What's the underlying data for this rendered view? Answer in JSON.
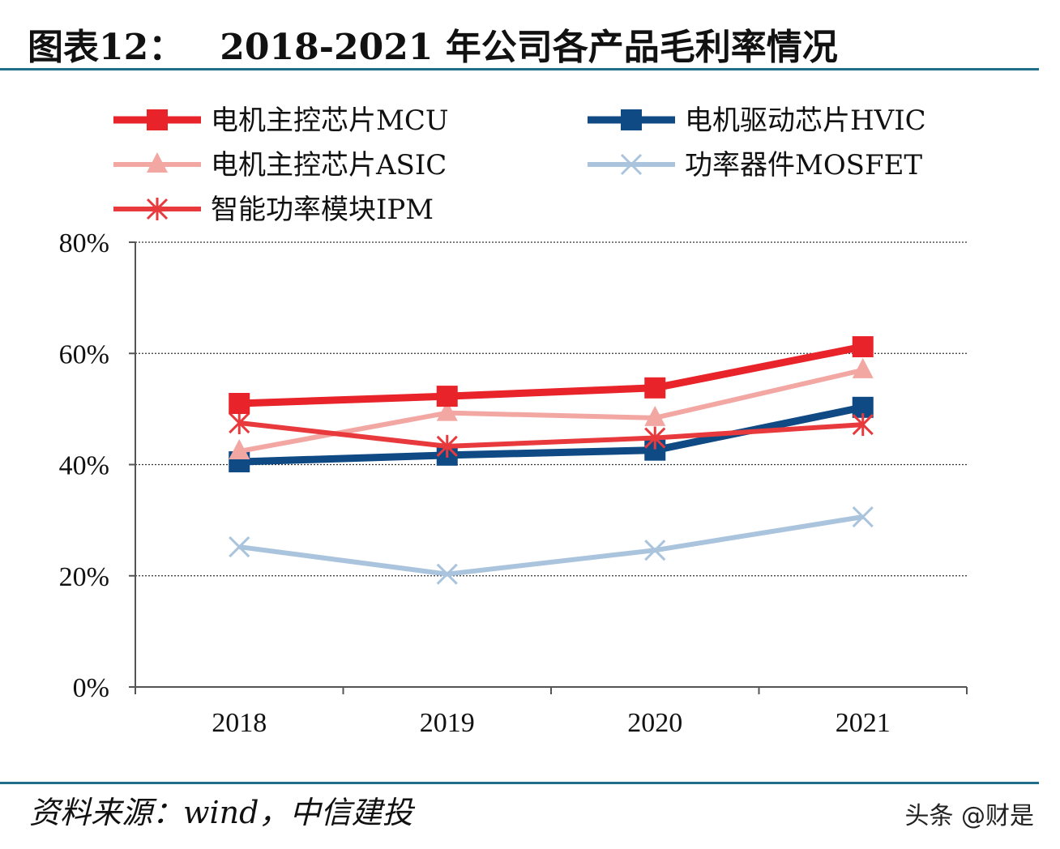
{
  "header": {
    "figure_label": "图表12：",
    "title": "2018-2021 年公司各产品毛利率情况"
  },
  "footer": {
    "source": "资料来源：wind，中信建投",
    "watermark": "头条 @财是"
  },
  "chart_data": {
    "type": "line",
    "title": "2018-2021 年公司各产品毛利率情况",
    "categories": [
      "2018",
      "2019",
      "2020",
      "2021"
    ],
    "xlabel": "",
    "ylabel": "",
    "ylim": [
      0,
      80
    ],
    "yticks": [
      "0%",
      "20%",
      "40%",
      "60%",
      "80%"
    ],
    "grid": true,
    "legend_position": "top",
    "series": [
      {
        "name": "电机主控芯片MCU",
        "values": [
          51.0,
          52.3,
          53.8,
          61.2
        ],
        "color": "#e8232a",
        "marker": "square",
        "width": 9
      },
      {
        "name": "电机驱动芯片HVIC",
        "values": [
          40.5,
          41.7,
          42.6,
          50.3
        ],
        "color": "#0f4a84",
        "marker": "square",
        "width": 9
      },
      {
        "name": "电机主控芯片ASIC",
        "values": [
          42.4,
          49.3,
          48.4,
          57.0
        ],
        "color": "#f2a7a3",
        "marker": "triangle",
        "width": 6
      },
      {
        "name": "功率器件MOSFET",
        "values": [
          25.2,
          20.3,
          24.6,
          30.6
        ],
        "color": "#a9c4dc",
        "marker": "x",
        "width": 6
      },
      {
        "name": "智能功率模块IPM",
        "values": [
          47.5,
          43.3,
          44.8,
          47.2
        ],
        "color": "#e83a3d",
        "marker": "star",
        "width": 6
      }
    ]
  }
}
